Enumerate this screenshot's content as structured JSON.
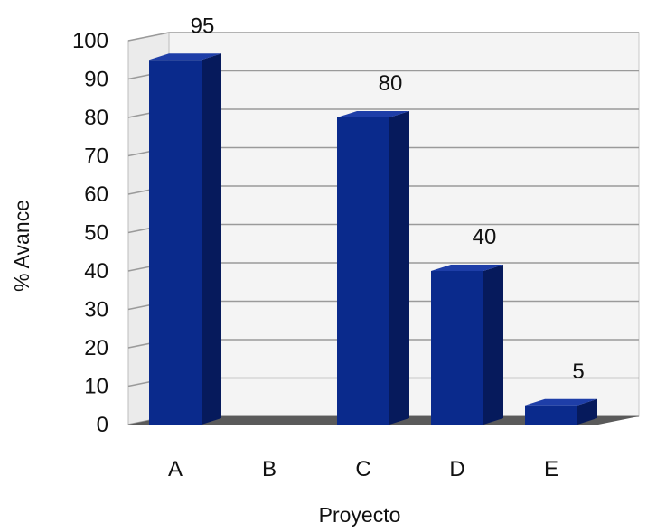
{
  "chart_data": {
    "type": "bar",
    "style": "3d",
    "categories": [
      "A",
      "B",
      "C",
      "D",
      "E"
    ],
    "values": [
      95,
      0,
      80,
      40,
      5
    ],
    "data_labels": [
      "95",
      "",
      "80",
      "40",
      "5"
    ],
    "xlabel": "Proyecto",
    "ylabel": "% Avance",
    "ylim": [
      0,
      100
    ],
    "yticks": [
      0,
      10,
      20,
      30,
      40,
      50,
      60,
      70,
      80,
      90,
      100
    ],
    "grid": true,
    "legend": "none",
    "colors": {
      "bar_front": "#0a2a8c",
      "bar_side": "#061a5c",
      "bar_top": "#1e3ea8",
      "floor": "#5a5a5a",
      "wall": "#f4f4f4",
      "grid": "#9a9a9a"
    }
  }
}
